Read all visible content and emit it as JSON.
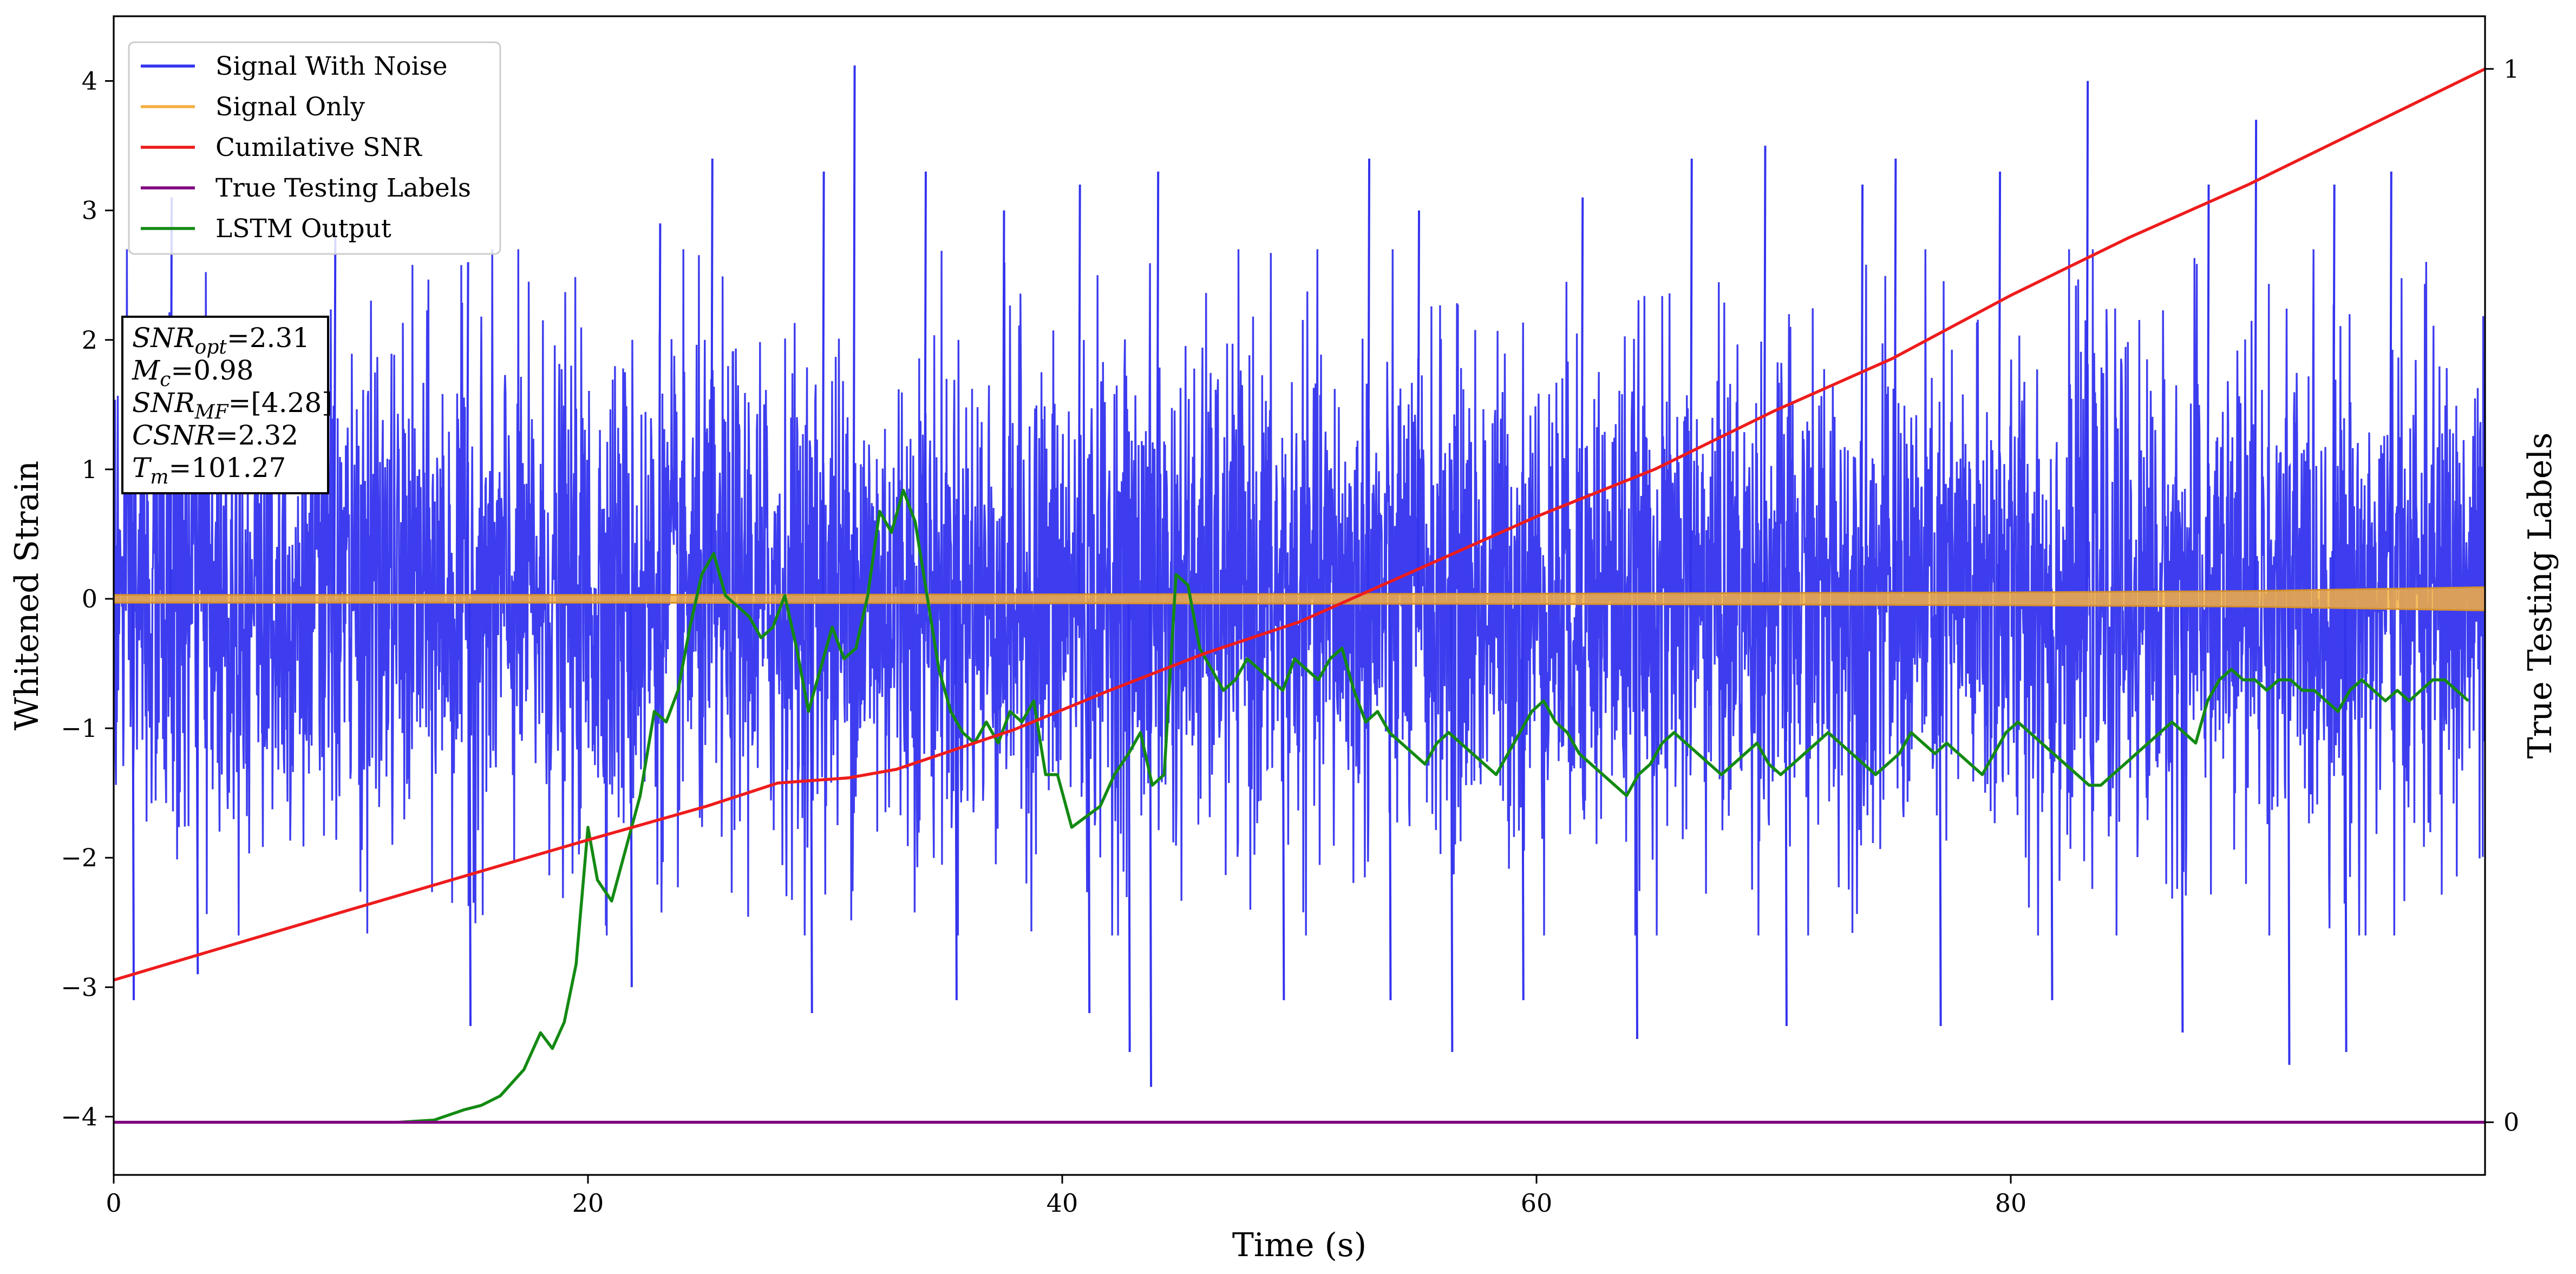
{
  "chart_data": {
    "type": "line",
    "xlabel": "Time (s)",
    "ylabel_left": "Whitened Strain",
    "ylabel_right": "True Testing Labels",
    "xlim": [
      0,
      100
    ],
    "ylim_left": [
      -4.45,
      4.5
    ],
    "ylim_right": [
      -0.05,
      1.05
    ],
    "x_ticks": [
      0,
      20,
      40,
      60,
      80
    ],
    "x_tick_labels": [
      "0",
      "20",
      "40",
      "60",
      "80"
    ],
    "y_left_ticks": [
      -4,
      -3,
      -2,
      -1,
      0,
      1,
      2,
      3,
      4
    ],
    "y_left_tick_labels": [
      "−4",
      "−3",
      "−2",
      "−1",
      "0",
      "1",
      "2",
      "3",
      "4"
    ],
    "y_right_ticks": [
      0,
      1
    ],
    "y_right_tick_labels": [
      "0",
      "1"
    ],
    "grid": false,
    "legend_position": "top-left",
    "legend": [
      {
        "label": "Signal With Noise",
        "color": "#3333ee"
      },
      {
        "label": "Signal Only",
        "color": "#f5b041"
      },
      {
        "label": "Cumilative SNR",
        "color": "#ee1c1c"
      },
      {
        "label": "True Testing Labels",
        "color": "#800080"
      },
      {
        "label": "LSTM Output",
        "color": "#138a13"
      }
    ],
    "annotation": {
      "lines": [
        {
          "sym": "SNR",
          "sub": "opt",
          "value": "=2.31"
        },
        {
          "sym": "M",
          "sub": "c",
          "value": "=0.98"
        },
        {
          "sym": "SNR",
          "sub": "MF",
          "value": "=[4.28]"
        },
        {
          "sym": "CSNR",
          "sub": "",
          "value": "=2.32"
        },
        {
          "sym": "T",
          "sub": "m",
          "value": "=101.27"
        }
      ]
    },
    "series": [
      {
        "name": "Signal With Noise",
        "axis": "left",
        "color": "#3333ee",
        "description_stats": {
          "min": -3.77,
          "max": 4.12
        },
        "peaks": [
          [
            2.4,
            3.1
          ],
          [
            9.3,
            2.8
          ],
          [
            14.9,
            2.6
          ],
          [
            23.0,
            2.9
          ],
          [
            25.2,
            3.4
          ],
          [
            29.9,
            3.3
          ],
          [
            31.2,
            4.12
          ],
          [
            34.2,
            3.3
          ],
          [
            37.5,
            3.0
          ],
          [
            40.7,
            3.2
          ],
          [
            44.0,
            3.3
          ],
          [
            52.9,
            3.4
          ],
          [
            55.0,
            3.0
          ],
          [
            61.9,
            3.1
          ],
          [
            66.5,
            3.4
          ],
          [
            69.6,
            3.5
          ],
          [
            73.7,
            3.2
          ],
          [
            75.1,
            3.4
          ],
          [
            79.5,
            3.3
          ],
          [
            83.2,
            4.0
          ],
          [
            88.3,
            3.2
          ],
          [
            90.3,
            3.7
          ],
          [
            93.6,
            3.2
          ],
          [
            96.0,
            3.3
          ]
        ],
        "troughs": [
          [
            0.8,
            -3.1
          ],
          [
            3.5,
            -2.9
          ],
          [
            15.0,
            -3.3
          ],
          [
            21.8,
            -3.0
          ],
          [
            29.4,
            -3.2
          ],
          [
            35.5,
            -3.1
          ],
          [
            41.1,
            -3.2
          ],
          [
            42.8,
            -3.5
          ],
          [
            43.7,
            -3.77
          ],
          [
            49.3,
            -3.1
          ],
          [
            53.8,
            -3.1
          ],
          [
            56.4,
            -3.5
          ],
          [
            59.4,
            -3.1
          ],
          [
            64.2,
            -3.4
          ],
          [
            70.5,
            -3.3
          ],
          [
            77.0,
            -3.3
          ],
          [
            81.7,
            -3.1
          ],
          [
            87.2,
            -3.35
          ],
          [
            91.7,
            -3.6
          ],
          [
            94.1,
            -3.5
          ]
        ]
      },
      {
        "name": "Signal Only",
        "axis": "left",
        "color": "#f5b041",
        "x": [
          0,
          20,
          40,
          60,
          80,
          90,
          100
        ],
        "amplitude": [
          0.03,
          0.03,
          0.035,
          0.04,
          0.05,
          0.06,
          0.09
        ]
      },
      {
        "name": "Cumilative SNR",
        "axis": "right",
        "color": "#ee1c1c",
        "x": [
          0,
          10,
          20,
          25,
          28,
          31,
          33,
          38,
          42,
          46,
          50,
          55,
          60,
          65,
          70,
          75,
          80,
          85,
          90,
          95,
          100
        ],
        "y": [
          0.135,
          0.202,
          0.268,
          0.3,
          0.322,
          0.327,
          0.335,
          0.373,
          0.41,
          0.445,
          0.475,
          0.525,
          0.575,
          0.62,
          0.675,
          0.725,
          0.785,
          0.84,
          0.89,
          0.945,
          1.0
        ]
      },
      {
        "name": "True Testing Labels",
        "axis": "right",
        "color": "#800080",
        "x": [
          0,
          100
        ],
        "y": [
          0,
          0
        ]
      },
      {
        "name": "LSTM Output",
        "axis": "right",
        "color": "#138a13",
        "x": [
          0,
          10,
          12,
          13.5,
          14.8,
          15.5,
          16.3,
          17.3,
          18.0,
          18.5,
          19.0,
          19.5,
          20.0,
          20.4,
          21.0,
          21.6,
          22.2,
          22.8,
          23.3,
          23.8,
          24.3,
          24.8,
          25.3,
          25.8,
          26.3,
          26.8,
          27.3,
          27.8,
          28.3,
          28.8,
          29.3,
          29.8,
          30.3,
          30.8,
          31.3,
          31.8,
          32.3,
          32.8,
          33.3,
          33.8,
          34.3,
          34.8,
          35.3,
          35.8,
          36.3,
          36.8,
          37.3,
          37.8,
          38.3,
          38.8,
          39.3,
          39.8,
          40.4,
          41.0,
          41.6,
          42.2,
          42.8,
          43.3,
          43.8,
          44.3,
          44.8,
          45.3,
          45.8,
          46.3,
          46.8,
          47.3,
          47.8,
          48.3,
          48.8,
          49.3,
          49.8,
          50.3,
          50.8,
          51.3,
          51.8,
          52.3,
          52.8,
          53.3,
          53.8,
          54.3,
          54.8,
          55.3,
          55.8,
          56.3,
          56.8,
          57.3,
          57.8,
          58.3,
          58.8,
          59.3,
          59.8,
          60.3,
          60.8,
          61.3,
          61.8,
          62.3,
          62.8,
          63.3,
          63.8,
          64.3,
          64.8,
          65.3,
          65.8,
          66.3,
          66.8,
          67.3,
          67.8,
          68.3,
          68.8,
          69.3,
          69.8,
          70.3,
          70.8,
          71.3,
          71.8,
          72.3,
          72.8,
          73.3,
          73.8,
          74.3,
          74.8,
          75.3,
          75.8,
          76.3,
          76.8,
          77.3,
          77.8,
          78.3,
          78.8,
          79.3,
          79.8,
          80.3,
          80.8,
          81.3,
          81.8,
          82.3,
          82.8,
          83.3,
          83.8,
          84.3,
          84.8,
          85.3,
          85.8,
          86.3,
          86.8,
          87.3,
          87.8,
          88.3,
          88.8,
          89.3,
          89.8,
          90.3,
          90.8,
          91.3,
          91.8,
          92.3,
          92.8,
          93.3,
          93.8,
          94.3,
          94.8,
          95.3,
          95.8,
          96.3,
          96.8,
          97.3,
          97.8,
          98.3,
          98.8,
          99.3
        ],
        "y": [
          0.0,
          0.0,
          0.0,
          0.002,
          0.012,
          0.016,
          0.025,
          0.05,
          0.085,
          0.07,
          0.095,
          0.15,
          0.28,
          0.23,
          0.21,
          0.26,
          0.31,
          0.39,
          0.38,
          0.41,
          0.47,
          0.52,
          0.54,
          0.5,
          0.49,
          0.48,
          0.46,
          0.47,
          0.5,
          0.45,
          0.39,
          0.43,
          0.47,
          0.44,
          0.45,
          0.5,
          0.58,
          0.56,
          0.6,
          0.57,
          0.5,
          0.43,
          0.39,
          0.37,
          0.36,
          0.38,
          0.36,
          0.39,
          0.38,
          0.4,
          0.33,
          0.33,
          0.28,
          0.29,
          0.3,
          0.33,
          0.35,
          0.37,
          0.32,
          0.33,
          0.52,
          0.51,
          0.45,
          0.43,
          0.41,
          0.42,
          0.44,
          0.43,
          0.42,
          0.41,
          0.44,
          0.43,
          0.42,
          0.44,
          0.45,
          0.41,
          0.38,
          0.39,
          0.37,
          0.36,
          0.35,
          0.34,
          0.36,
          0.37,
          0.36,
          0.35,
          0.34,
          0.33,
          0.35,
          0.37,
          0.39,
          0.4,
          0.38,
          0.37,
          0.35,
          0.34,
          0.33,
          0.32,
          0.31,
          0.33,
          0.34,
          0.36,
          0.37,
          0.36,
          0.35,
          0.34,
          0.33,
          0.34,
          0.35,
          0.36,
          0.34,
          0.33,
          0.34,
          0.35,
          0.36,
          0.37,
          0.36,
          0.35,
          0.34,
          0.33,
          0.34,
          0.35,
          0.37,
          0.36,
          0.35,
          0.36,
          0.35,
          0.34,
          0.33,
          0.35,
          0.37,
          0.38,
          0.37,
          0.36,
          0.35,
          0.34,
          0.33,
          0.32,
          0.32,
          0.33,
          0.34,
          0.35,
          0.36,
          0.37,
          0.38,
          0.37,
          0.36,
          0.4,
          0.42,
          0.43,
          0.42,
          0.42,
          0.41,
          0.42,
          0.42,
          0.41,
          0.41,
          0.4,
          0.39,
          0.41,
          0.42,
          0.41,
          0.4,
          0.41,
          0.4,
          0.41,
          0.42,
          0.42,
          0.41,
          0.4
        ]
      }
    ]
  }
}
